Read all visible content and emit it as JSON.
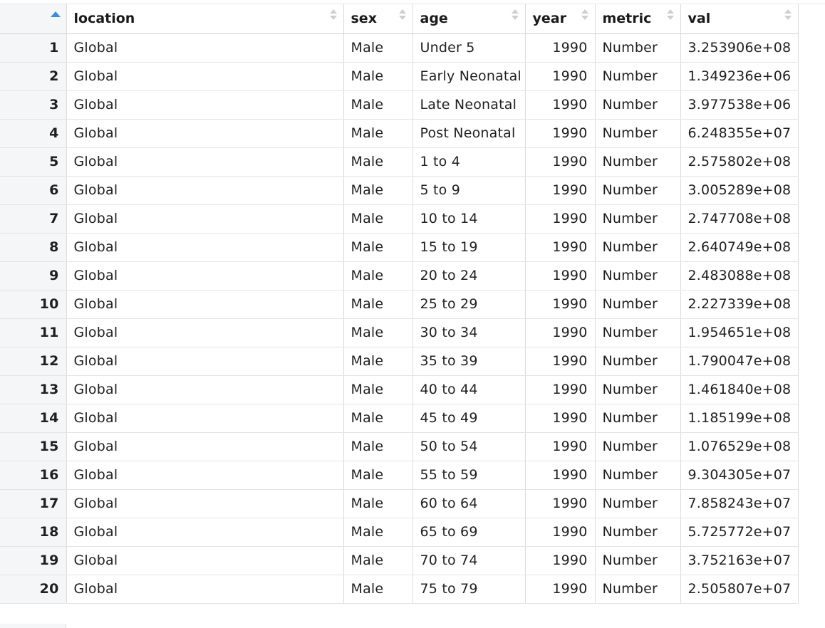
{
  "columns": {
    "index": "",
    "location": "location",
    "sex": "sex",
    "age": "age",
    "year": "year",
    "metric": "metric",
    "val": "val"
  },
  "sort": {
    "column": "index",
    "direction": "ascending"
  },
  "rows": [
    {
      "index": "1",
      "location": "Global",
      "sex": "Male",
      "age": "Under 5",
      "year": "1990",
      "metric": "Number",
      "val": "3.253906e+08"
    },
    {
      "index": "2",
      "location": "Global",
      "sex": "Male",
      "age": "Early Neonatal",
      "year": "1990",
      "metric": "Number",
      "val": "1.349236e+06"
    },
    {
      "index": "3",
      "location": "Global",
      "sex": "Male",
      "age": "Late Neonatal",
      "year": "1990",
      "metric": "Number",
      "val": "3.977538e+06"
    },
    {
      "index": "4",
      "location": "Global",
      "sex": "Male",
      "age": "Post Neonatal",
      "year": "1990",
      "metric": "Number",
      "val": "6.248355e+07"
    },
    {
      "index": "5",
      "location": "Global",
      "sex": "Male",
      "age": "1 to 4",
      "year": "1990",
      "metric": "Number",
      "val": "2.575802e+08"
    },
    {
      "index": "6",
      "location": "Global",
      "sex": "Male",
      "age": "5 to 9",
      "year": "1990",
      "metric": "Number",
      "val": "3.005289e+08"
    },
    {
      "index": "7",
      "location": "Global",
      "sex": "Male",
      "age": "10 to 14",
      "year": "1990",
      "metric": "Number",
      "val": "2.747708e+08"
    },
    {
      "index": "8",
      "location": "Global",
      "sex": "Male",
      "age": "15 to 19",
      "year": "1990",
      "metric": "Number",
      "val": "2.640749e+08"
    },
    {
      "index": "9",
      "location": "Global",
      "sex": "Male",
      "age": "20 to 24",
      "year": "1990",
      "metric": "Number",
      "val": "2.483088e+08"
    },
    {
      "index": "10",
      "location": "Global",
      "sex": "Male",
      "age": "25 to 29",
      "year": "1990",
      "metric": "Number",
      "val": "2.227339e+08"
    },
    {
      "index": "11",
      "location": "Global",
      "sex": "Male",
      "age": "30 to 34",
      "year": "1990",
      "metric": "Number",
      "val": "1.954651e+08"
    },
    {
      "index": "12",
      "location": "Global",
      "sex": "Male",
      "age": "35 to 39",
      "year": "1990",
      "metric": "Number",
      "val": "1.790047e+08"
    },
    {
      "index": "13",
      "location": "Global",
      "sex": "Male",
      "age": "40 to 44",
      "year": "1990",
      "metric": "Number",
      "val": "1.461840e+08"
    },
    {
      "index": "14",
      "location": "Global",
      "sex": "Male",
      "age": "45 to 49",
      "year": "1990",
      "metric": "Number",
      "val": "1.185199e+08"
    },
    {
      "index": "15",
      "location": "Global",
      "sex": "Male",
      "age": "50 to 54",
      "year": "1990",
      "metric": "Number",
      "val": "1.076529e+08"
    },
    {
      "index": "16",
      "location": "Global",
      "sex": "Male",
      "age": "55 to 59",
      "year": "1990",
      "metric": "Number",
      "val": "9.304305e+07"
    },
    {
      "index": "17",
      "location": "Global",
      "sex": "Male",
      "age": "60 to 64",
      "year": "1990",
      "metric": "Number",
      "val": "7.858243e+07"
    },
    {
      "index": "18",
      "location": "Global",
      "sex": "Male",
      "age": "65 to 69",
      "year": "1990",
      "metric": "Number",
      "val": "5.725772e+07"
    },
    {
      "index": "19",
      "location": "Global",
      "sex": "Male",
      "age": "70 to 74",
      "year": "1990",
      "metric": "Number",
      "val": "3.752163e+07"
    },
    {
      "index": "20",
      "location": "Global",
      "sex": "Male",
      "age": "75 to 79",
      "year": "1990",
      "metric": "Number",
      "val": "2.505807e+07"
    }
  ],
  "colors": {
    "sort_active": "#3b8fd9",
    "sort_inactive": "#cfcfcf",
    "index_column_bg": "#f4f6f8",
    "grid_line": "#dcdcdc"
  }
}
